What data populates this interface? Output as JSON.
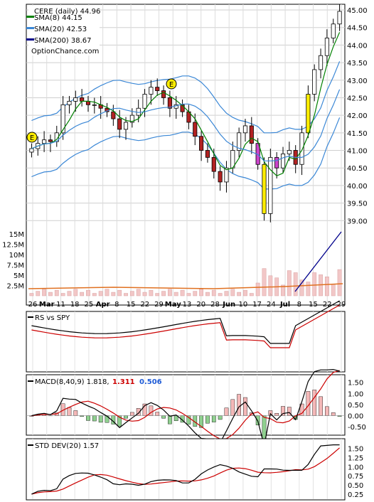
{
  "chart_data": [
    {
      "type": "candlestick",
      "panel": "price",
      "title": "CERE (daily) 44.96",
      "watermark": "OptionChance.com",
      "legend": [
        {
          "name": "SMA(8) 44.15",
          "color": "#008000"
        },
        {
          "name": "SMA(20) 42.53",
          "color": "#3a87d6"
        },
        {
          "name": "SMA(200) 38.67",
          "color": "#00008b"
        }
      ],
      "ylim": [
        38.6,
        45.0
      ],
      "yticks": [
        "45.00",
        "44.50",
        "44.00",
        "43.50",
        "43.00",
        "42.50",
        "42.00",
        "41.50",
        "41.00",
        "40.50",
        "40.00",
        "39.50",
        "39.00"
      ],
      "xticks": [
        "26",
        "Mar",
        "11",
        "18",
        "25",
        "Apr",
        "8",
        "15",
        "22",
        "29",
        "May",
        "13",
        "20",
        "28",
        "Jun",
        "10",
        "17",
        "24",
        "Jul",
        "8",
        "15",
        "22",
        "29"
      ],
      "earnings_marker": "E",
      "close_approx": [
        41.05,
        41.2,
        41.3,
        41.25,
        41.5,
        42.3,
        42.4,
        42.5,
        42.4,
        42.3,
        42.3,
        42.2,
        42.1,
        41.9,
        41.6,
        41.8,
        42.0,
        42.2,
        42.6,
        42.8,
        42.7,
        42.5,
        42.2,
        42.3,
        42.1,
        41.8,
        41.4,
        41.0,
        40.8,
        40.4,
        40.1,
        40.5,
        41.0,
        41.5,
        41.7,
        41.2,
        40.6,
        39.2,
        40.8,
        40.5,
        40.9,
        41.0,
        40.6,
        41.5,
        42.6,
        43.3,
        43.7,
        44.2,
        44.6,
        44.96
      ],
      "sma8_last": 44.15,
      "sma20_last": 42.53,
      "sma200_last": 38.67
    },
    {
      "type": "bar",
      "panel": "volume",
      "yticks": [
        "15M",
        "12.5M",
        "10M",
        "7.5M",
        "5M",
        "2.5M"
      ],
      "ylim": [
        0,
        16
      ]
    },
    {
      "type": "line",
      "panel": "rs",
      "title": "RS vs SPY"
    },
    {
      "type": "line",
      "panel": "macd",
      "title": "MACD(8,40,9) 1.818,",
      "signal_value": "1.311",
      "hist_value": "0.506",
      "yticks": [
        "1.50",
        "1.00",
        "0.50",
        "0.00",
        "-0.50"
      ],
      "ylim": [
        -0.75,
        1.65
      ]
    },
    {
      "type": "line",
      "panel": "stddev",
      "title": "STD DEV(20) 1.57",
      "yticks": [
        "1.50",
        "1.25",
        "1.00",
        "0.75",
        "0.50",
        "0.25"
      ],
      "ylim": [
        0.15,
        1.65
      ]
    }
  ],
  "colors": {
    "up_candle": "#ffffff",
    "down_candle": "#b22222",
    "yellow_candle": "#ffee00",
    "magenta_candle": "#cc44cc",
    "sma8": "#008000",
    "sma20": "#3a87d6",
    "sma200": "#00008b",
    "signal": "#cc0000",
    "hist_blue": "#1e5bd6"
  }
}
